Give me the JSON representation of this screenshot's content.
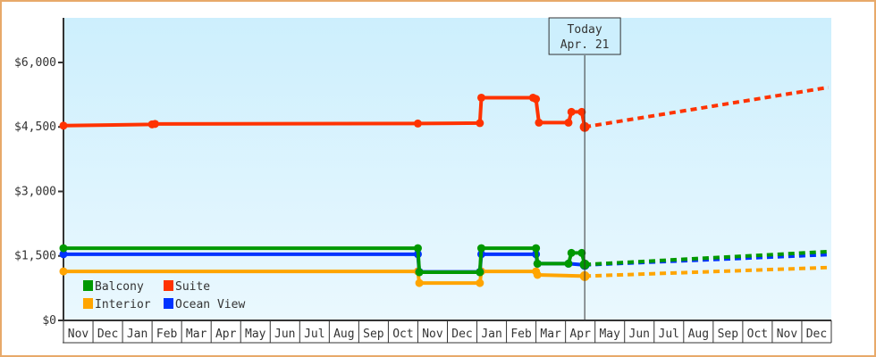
{
  "chart_data": {
    "type": "line",
    "title": "",
    "xlabel": "",
    "ylabel": "",
    "ylim": [
      0,
      6500
    ],
    "yticks": [
      {
        "value": 0,
        "label": "$0"
      },
      {
        "value": 1500,
        "label": "$1,500"
      },
      {
        "value": 3000,
        "label": "$3,000"
      },
      {
        "value": 4500,
        "label": "$4,500"
      },
      {
        "value": 6000,
        "label": "$6,000"
      }
    ],
    "categories": [
      "Nov",
      "Dec",
      "Jan",
      "Feb",
      "Mar",
      "Apr",
      "May",
      "Jun",
      "Jul",
      "Aug",
      "Sep",
      "Oct",
      "Nov",
      "Dec",
      "Jan",
      "Feb",
      "Mar",
      "Apr",
      "May",
      "Jun",
      "Jul",
      "Aug",
      "Sep",
      "Oct",
      "Nov",
      "Dec"
    ],
    "today_marker": {
      "line1": "Today",
      "line2": "Apr. 21",
      "month_index": 17.65
    },
    "legend": [
      {
        "name": "Balcony",
        "color": "#009900"
      },
      {
        "name": "Suite",
        "color": "#ff3300"
      },
      {
        "name": "Interior",
        "color": "#ffa500"
      },
      {
        "name": "Ocean View",
        "color": "#0033ff"
      }
    ],
    "series": [
      {
        "name": "Suite",
        "color": "#ff3300",
        "history": [
          [
            0,
            4530
          ],
          [
            3,
            4560
          ],
          [
            3.1,
            4570
          ],
          [
            12,
            4580
          ],
          [
            14.1,
            4590
          ],
          [
            14.15,
            5180
          ],
          [
            15.9,
            5180
          ],
          [
            16,
            5150
          ],
          [
            16.1,
            4600
          ],
          [
            17.1,
            4600
          ],
          [
            17.2,
            4850
          ],
          [
            17.55,
            4850
          ],
          [
            17.65,
            4500
          ]
        ],
        "forecast": [
          [
            17.65,
            4500
          ],
          [
            25.9,
            5420
          ]
        ]
      },
      {
        "name": "Balcony",
        "color": "#009900",
        "history": [
          [
            0,
            1680
          ],
          [
            12,
            1680
          ],
          [
            12.05,
            1120
          ],
          [
            14.1,
            1120
          ],
          [
            14.15,
            1680
          ],
          [
            16.0,
            1680
          ],
          [
            16.05,
            1320
          ],
          [
            17.1,
            1320
          ],
          [
            17.2,
            1570
          ],
          [
            17.55,
            1570
          ],
          [
            17.65,
            1300
          ]
        ],
        "forecast": [
          [
            17.65,
            1300
          ],
          [
            25.9,
            1600
          ]
        ]
      },
      {
        "name": "Ocean View",
        "color": "#0033ff",
        "history": [
          [
            0,
            1540
          ],
          [
            12,
            1540
          ],
          [
            12.05,
            1130
          ],
          [
            14.1,
            1130
          ],
          [
            14.15,
            1540
          ],
          [
            16.0,
            1540
          ],
          [
            16.05,
            1320
          ],
          [
            17.1,
            1320
          ],
          [
            17.65,
            1290
          ]
        ],
        "forecast": [
          [
            17.65,
            1290
          ],
          [
            25.9,
            1530
          ]
        ]
      },
      {
        "name": "Interior",
        "color": "#ffa500",
        "history": [
          [
            0,
            1140
          ],
          [
            12,
            1140
          ],
          [
            12.05,
            870
          ],
          [
            14.1,
            870
          ],
          [
            14.15,
            1140
          ],
          [
            16.0,
            1140
          ],
          [
            16.05,
            1060
          ],
          [
            17.65,
            1030
          ]
        ],
        "forecast": [
          [
            17.65,
            1030
          ],
          [
            25.9,
            1230
          ]
        ]
      }
    ]
  }
}
